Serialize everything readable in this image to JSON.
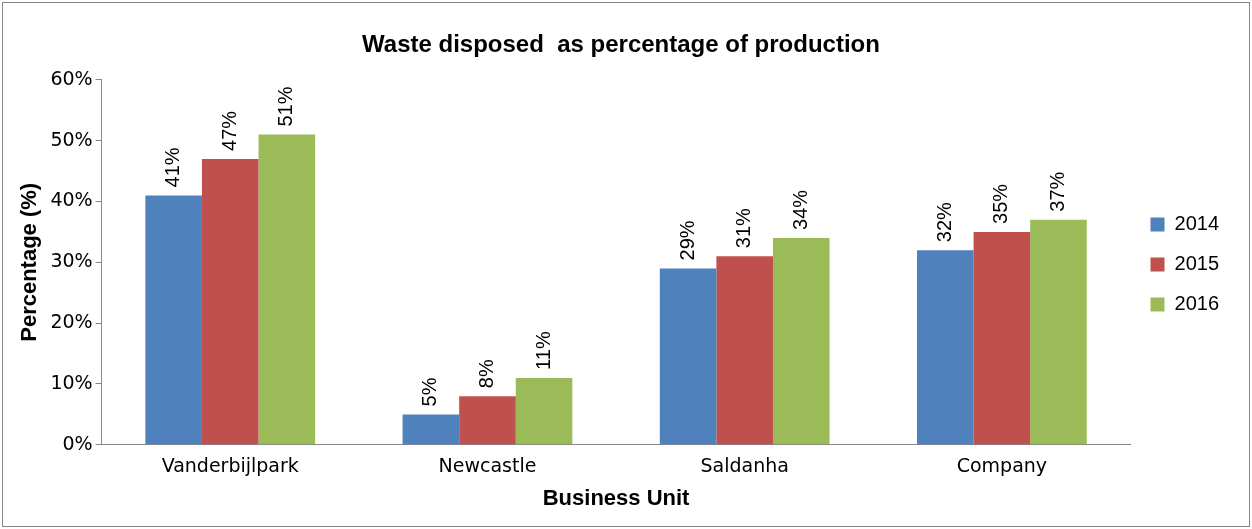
{
  "chart_data": {
    "type": "bar",
    "title": "Waste disposed  as percentage of production",
    "xlabel": "Business Unit",
    "ylabel": "Percentage (%)",
    "categories": [
      "Vanderbijlpark",
      "Newcastle",
      "Saldanha",
      "Company"
    ],
    "series": [
      {
        "name": "2014",
        "color": "#4f81bd",
        "values": [
          41,
          5,
          29,
          32
        ],
        "value_labels": [
          "41%",
          "5%",
          "29%",
          "32%"
        ]
      },
      {
        "name": "2015",
        "color": "#c0504d",
        "values": [
          47,
          8,
          31,
          35
        ],
        "value_labels": [
          "47%",
          "8%",
          "31%",
          "35%"
        ]
      },
      {
        "name": "2016",
        "color": "#9bbb59",
        "values": [
          51,
          11,
          34,
          37
        ],
        "value_labels": [
          "51%",
          "11%",
          "34%",
          "37%"
        ]
      }
    ],
    "ylim": [
      0,
      60
    ],
    "yticks": [
      {
        "value": 0,
        "label": "0%"
      },
      {
        "value": 10,
        "label": "10%"
      },
      {
        "value": 20,
        "label": "20%"
      },
      {
        "value": 30,
        "label": "30%"
      },
      {
        "value": 40,
        "label": "40%"
      },
      {
        "value": 50,
        "label": "50%"
      },
      {
        "value": 60,
        "label": "60%"
      }
    ],
    "grid": false,
    "legend": "right"
  }
}
